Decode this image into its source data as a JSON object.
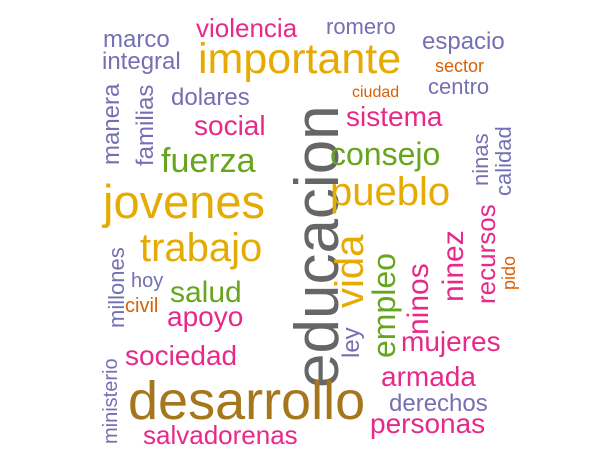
{
  "palette": {
    "gray": "#666666",
    "gold": "#e6ab02",
    "bronze": "#a6761d",
    "magenta": "#e7298a",
    "green": "#66a61e",
    "lavender": "#7570b3",
    "orange": "#d95f02"
  },
  "words": [
    {
      "text": "educacion",
      "color": "#666666"
    },
    {
      "text": "desarrollo",
      "color": "#a6761d"
    },
    {
      "text": "jovenes",
      "color": "#e6ab02"
    },
    {
      "text": "importante",
      "color": "#e6ab02"
    },
    {
      "text": "pueblo",
      "color": "#e6ab02"
    },
    {
      "text": "trabajo",
      "color": "#e6ab02"
    },
    {
      "text": "vida",
      "color": "#e6ab02"
    },
    {
      "text": "fuerza",
      "color": "#66a61e"
    },
    {
      "text": "consejo",
      "color": "#66a61e"
    },
    {
      "text": "empleo",
      "color": "#66a61e"
    },
    {
      "text": "salud",
      "color": "#66a61e"
    },
    {
      "text": "violencia",
      "color": "#e7298a"
    },
    {
      "text": "social",
      "color": "#e7298a"
    },
    {
      "text": "sistema",
      "color": "#e7298a"
    },
    {
      "text": "apoyo",
      "color": "#e7298a"
    },
    {
      "text": "sociedad",
      "color": "#e7298a"
    },
    {
      "text": "ninos",
      "color": "#e7298a"
    },
    {
      "text": "ninez",
      "color": "#e7298a"
    },
    {
      "text": "recursos",
      "color": "#e7298a"
    },
    {
      "text": "mujeres",
      "color": "#e7298a"
    },
    {
      "text": "armada",
      "color": "#e7298a"
    },
    {
      "text": "personas",
      "color": "#e7298a"
    },
    {
      "text": "salvadorenas",
      "color": "#e7298a"
    },
    {
      "text": "marco",
      "color": "#7570b3"
    },
    {
      "text": "romero",
      "color": "#7570b3"
    },
    {
      "text": "espacio",
      "color": "#7570b3"
    },
    {
      "text": "integral",
      "color": "#7570b3"
    },
    {
      "text": "dolares",
      "color": "#7570b3"
    },
    {
      "text": "centro",
      "color": "#7570b3"
    },
    {
      "text": "manera",
      "color": "#7570b3"
    },
    {
      "text": "familias",
      "color": "#7570b3"
    },
    {
      "text": "ninas",
      "color": "#7570b3"
    },
    {
      "text": "calidad",
      "color": "#7570b3"
    },
    {
      "text": "millones",
      "color": "#7570b3"
    },
    {
      "text": "hoy",
      "color": "#7570b3"
    },
    {
      "text": "ley",
      "color": "#7570b3"
    },
    {
      "text": "ministerio",
      "color": "#7570b3"
    },
    {
      "text": "derechos",
      "color": "#7570b3"
    },
    {
      "text": "sector",
      "color": "#d95f02"
    },
    {
      "text": "ciudad",
      "color": "#d95f02"
    },
    {
      "text": "pido",
      "color": "#d95f02"
    },
    {
      "text": "civil",
      "color": "#d95f02"
    }
  ]
}
